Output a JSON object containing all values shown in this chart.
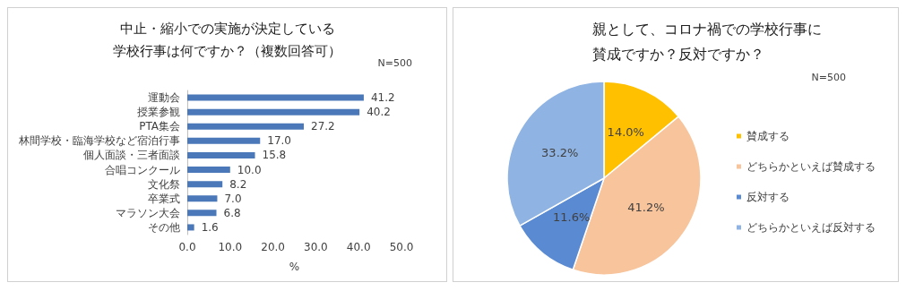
{
  "chart_data": [
    {
      "type": "bar",
      "orientation": "horizontal",
      "title": "中止・縮小での実施が決定している",
      "subtitle": "学校行事は何ですか？（複数回答可）",
      "xlabel": "%",
      "annotations": [
        "N=500"
      ],
      "categories": [
        "運動会",
        "授業参観",
        "PTA集会",
        "林間学校・臨海学校など宿泊行事",
        "個人面談・三者面談",
        "合唱コンクール",
        "文化祭",
        "卒業式",
        "マラソン大会",
        "その他"
      ],
      "values": [
        41.2,
        40.2,
        27.2,
        17.0,
        15.8,
        10.0,
        8.2,
        7.0,
        6.8,
        1.6
      ],
      "value_labels": [
        "41.2",
        "40.2",
        "27.2",
        "17.0",
        "15.8",
        "10.0",
        "8.2",
        "7.0",
        "6.8",
        "1.6"
      ],
      "color": "#4a78b8",
      "xlim": [
        0,
        50
      ],
      "xticks": [
        {
          "value": 0,
          "label": "0.0"
        },
        {
          "value": 10,
          "label": "10.0"
        },
        {
          "value": 20,
          "label": "20.0"
        },
        {
          "value": 30,
          "label": "30.0"
        },
        {
          "value": 40,
          "label": "40.0"
        },
        {
          "value": 50,
          "label": "50.0"
        }
      ],
      "grid": false,
      "legend": false
    },
    {
      "type": "pie",
      "title": "親として、コロナ禍での学校行事に",
      "subtitle": "賛成ですか？反対ですか？",
      "annotations": [
        "N=500"
      ],
      "categories": [
        "賛成する",
        "どちらかといえば賛成する",
        "反対する",
        "どちらかといえば反対する"
      ],
      "values": [
        14.0,
        41.2,
        11.6,
        33.2
      ],
      "value_labels": [
        "14.0%",
        "41.2%",
        "11.6%",
        "33.2%"
      ],
      "colors": [
        "#ffc000",
        "#f8c49c",
        "#5a8ad2",
        "#8fb4e3"
      ],
      "legend": "right"
    }
  ]
}
